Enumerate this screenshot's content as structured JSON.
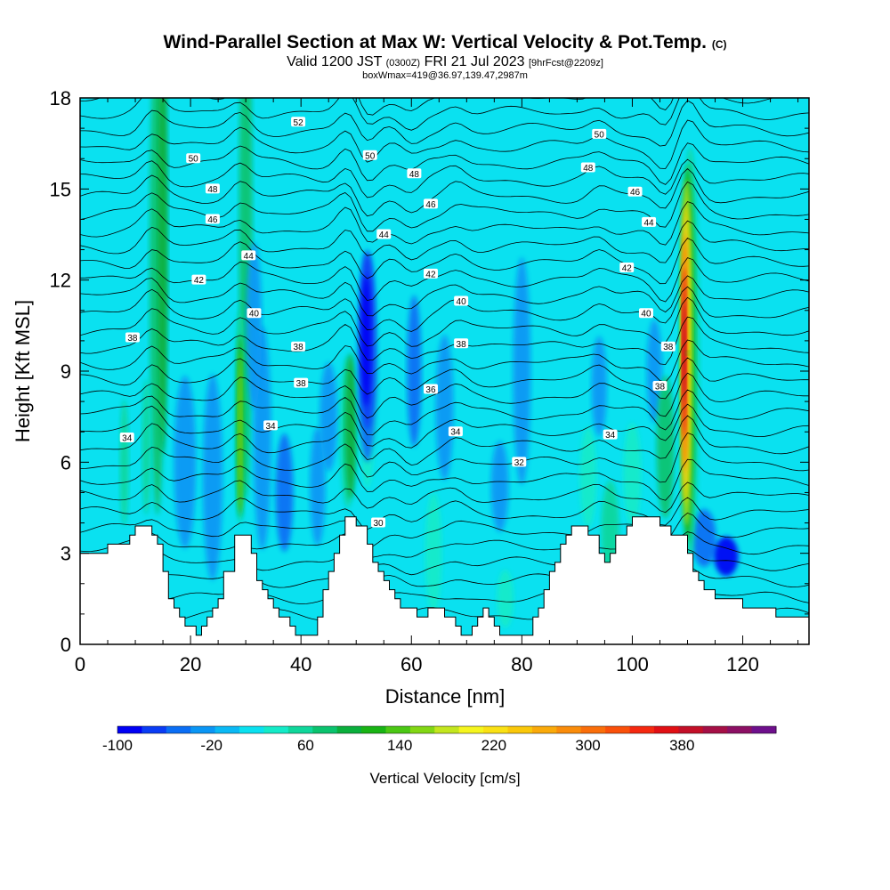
{
  "header": {
    "title": "Wind-Parallel Section at Max W: Vertical Velocity & Pot.Temp.",
    "title_mark": "(C)",
    "valid_prefix": "Valid 1200 JST",
    "valid_utc": "(0300Z)",
    "valid_date": "FRI 21 Jul 2023",
    "forecast": "[9hrFcst@2209z]",
    "box_info": "boxWmax=419@36.97,139.47,2987m"
  },
  "chart_data": {
    "type": "heatmap",
    "xlabel": "Distance [nm]",
    "ylabel": "Height [Kft MSL]",
    "xlim": [
      0,
      132
    ],
    "ylim": [
      0,
      18
    ],
    "x_ticks": [
      0,
      20,
      40,
      60,
      80,
      100,
      120
    ],
    "y_ticks": [
      0,
      3,
      6,
      9,
      12,
      15,
      18
    ],
    "background_w": 5,
    "colorbar": {
      "label": "Vertical Velocity [cm/s]",
      "tick_labels": [
        "-100",
        "-20",
        "60",
        "140",
        "220",
        "300",
        "380"
      ],
      "tick_values": [
        -100,
        -20,
        60,
        140,
        220,
        300,
        380
      ],
      "range": [
        -100,
        460
      ],
      "colors": [
        "#0000f5",
        "#0a3cf5",
        "#0a6ef5",
        "#0a96f5",
        "#0ab9f5",
        "#0ae1f0",
        "#14ebc8",
        "#0fd79b",
        "#0ac36e",
        "#0aaf3c",
        "#19b414",
        "#4bc814",
        "#82d714",
        "#c3e61e",
        "#f5f51e",
        "#fae114",
        "#fac80a",
        "#faaa0a",
        "#fa8c0a",
        "#fa6e0a",
        "#fa500a",
        "#f5280f",
        "#e10f14",
        "#c30f28",
        "#a50f46",
        "#8c0f64",
        "#6e0f8c"
      ]
    },
    "terrain": [
      [
        0,
        3.0
      ],
      [
        5,
        3.0
      ],
      [
        5,
        3.3
      ],
      [
        9,
        3.3
      ],
      [
        9,
        3.6
      ],
      [
        10,
        3.6
      ],
      [
        10,
        3.9
      ],
      [
        13,
        3.9
      ],
      [
        13,
        3.6
      ],
      [
        14,
        3.6
      ],
      [
        14,
        3.3
      ],
      [
        15,
        3.3
      ],
      [
        15,
        2.4
      ],
      [
        16,
        2.4
      ],
      [
        16,
        1.5
      ],
      [
        17,
        1.5
      ],
      [
        17,
        1.2
      ],
      [
        18,
        1.2
      ],
      [
        18,
        0.9
      ],
      [
        19,
        0.9
      ],
      [
        19,
        0.6
      ],
      [
        21,
        0.6
      ],
      [
        21,
        0.3
      ],
      [
        22,
        0.3
      ],
      [
        22,
        0.6
      ],
      [
        23,
        0.6
      ],
      [
        23,
        0.9
      ],
      [
        24,
        0.9
      ],
      [
        24,
        1.2
      ],
      [
        25,
        1.2
      ],
      [
        25,
        1.5
      ],
      [
        26,
        1.5
      ],
      [
        26,
        2.4
      ],
      [
        28,
        2.4
      ],
      [
        28,
        3.6
      ],
      [
        31,
        3.6
      ],
      [
        31,
        3.0
      ],
      [
        32,
        3.0
      ],
      [
        32,
        2.1
      ],
      [
        33,
        2.1
      ],
      [
        33,
        1.8
      ],
      [
        34,
        1.8
      ],
      [
        34,
        1.5
      ],
      [
        35,
        1.5
      ],
      [
        35,
        1.2
      ],
      [
        36,
        1.2
      ],
      [
        36,
        0.9
      ],
      [
        38,
        0.9
      ],
      [
        38,
        0.6
      ],
      [
        39,
        0.6
      ],
      [
        39,
        0.3
      ],
      [
        43,
        0.3
      ],
      [
        43,
        0.9
      ],
      [
        44,
        0.9
      ],
      [
        44,
        1.8
      ],
      [
        45,
        1.8
      ],
      [
        45,
        2.4
      ],
      [
        46,
        2.4
      ],
      [
        46,
        3.0
      ],
      [
        47,
        3.0
      ],
      [
        47,
        3.6
      ],
      [
        48,
        3.6
      ],
      [
        48,
        4.2
      ],
      [
        50,
        4.2
      ],
      [
        50,
        3.9
      ],
      [
        52,
        3.9
      ],
      [
        52,
        3.3
      ],
      [
        53,
        3.3
      ],
      [
        53,
        2.7
      ],
      [
        54,
        2.7
      ],
      [
        54,
        2.4
      ],
      [
        55,
        2.4
      ],
      [
        55,
        2.1
      ],
      [
        56,
        2.1
      ],
      [
        56,
        1.8
      ],
      [
        57,
        1.8
      ],
      [
        57,
        1.5
      ],
      [
        58,
        1.5
      ],
      [
        58,
        1.2
      ],
      [
        61,
        1.2
      ],
      [
        61,
        0.9
      ],
      [
        63,
        0.9
      ],
      [
        63,
        1.2
      ],
      [
        66,
        1.2
      ],
      [
        66,
        0.9
      ],
      [
        68,
        0.9
      ],
      [
        68,
        0.6
      ],
      [
        69,
        0.6
      ],
      [
        69,
        0.3
      ],
      [
        71,
        0.3
      ],
      [
        71,
        0.6
      ],
      [
        72,
        0.6
      ],
      [
        72,
        0.9
      ],
      [
        73,
        0.9
      ],
      [
        73,
        1.2
      ],
      [
        74,
        1.2
      ],
      [
        74,
        0.9
      ],
      [
        75,
        0.9
      ],
      [
        75,
        0.6
      ],
      [
        76,
        0.6
      ],
      [
        76,
        0.3
      ],
      [
        82,
        0.3
      ],
      [
        82,
        0.9
      ],
      [
        83,
        0.9
      ],
      [
        83,
        1.2
      ],
      [
        84,
        1.2
      ],
      [
        84,
        1.8
      ],
      [
        85,
        1.8
      ],
      [
        85,
        2.4
      ],
      [
        86,
        2.4
      ],
      [
        86,
        2.7
      ],
      [
        87,
        2.7
      ],
      [
        87,
        3.3
      ],
      [
        88,
        3.3
      ],
      [
        88,
        3.6
      ],
      [
        89,
        3.6
      ],
      [
        89,
        3.9
      ],
      [
        92,
        3.9
      ],
      [
        92,
        3.6
      ],
      [
        94,
        3.6
      ],
      [
        94,
        3.0
      ],
      [
        95,
        3.0
      ],
      [
        95,
        2.7
      ],
      [
        96,
        2.7
      ],
      [
        96,
        3.0
      ],
      [
        97,
        3.0
      ],
      [
        97,
        3.6
      ],
      [
        99,
        3.6
      ],
      [
        99,
        3.9
      ],
      [
        100,
        3.9
      ],
      [
        100,
        4.2
      ],
      [
        105,
        4.2
      ],
      [
        105,
        3.9
      ],
      [
        107,
        3.9
      ],
      [
        107,
        3.6
      ],
      [
        110,
        3.6
      ],
      [
        110,
        3.0
      ],
      [
        111,
        3.0
      ],
      [
        111,
        2.4
      ],
      [
        112,
        2.4
      ],
      [
        112,
        2.1
      ],
      [
        113,
        2.1
      ],
      [
        113,
        1.8
      ],
      [
        115,
        1.8
      ],
      [
        115,
        1.5
      ],
      [
        120,
        1.5
      ],
      [
        120,
        1.2
      ],
      [
        126,
        1.2
      ],
      [
        126,
        0.9
      ],
      [
        132,
        0.9
      ]
    ],
    "theta_labels": [
      {
        "text": "52",
        "x": 39.5,
        "y": 17.2
      },
      {
        "text": "50",
        "x": 20.5,
        "y": 16.0
      },
      {
        "text": "50",
        "x": 94,
        "y": 16.8
      },
      {
        "text": "50",
        "x": 52.5,
        "y": 16.1
      },
      {
        "text": "48",
        "x": 24,
        "y": 15.0
      },
      {
        "text": "48",
        "x": 60.5,
        "y": 15.5
      },
      {
        "text": "48",
        "x": 92,
        "y": 15.7
      },
      {
        "text": "46",
        "x": 24,
        "y": 14.0
      },
      {
        "text": "46",
        "x": 63.5,
        "y": 14.5
      },
      {
        "text": "46",
        "x": 100.5,
        "y": 14.9
      },
      {
        "text": "44",
        "x": 55,
        "y": 13.5
      },
      {
        "text": "44",
        "x": 30.5,
        "y": 12.8
      },
      {
        "text": "44",
        "x": 103,
        "y": 13.9
      },
      {
        "text": "42",
        "x": 21.5,
        "y": 12.0
      },
      {
        "text": "42",
        "x": 63.5,
        "y": 12.2
      },
      {
        "text": "42",
        "x": 99,
        "y": 12.4
      },
      {
        "text": "40",
        "x": 69,
        "y": 11.3
      },
      {
        "text": "40",
        "x": 31.5,
        "y": 10.9
      },
      {
        "text": "40",
        "x": 102.5,
        "y": 10.9
      },
      {
        "text": "38",
        "x": 9.5,
        "y": 10.1
      },
      {
        "text": "38",
        "x": 39.5,
        "y": 9.8
      },
      {
        "text": "38",
        "x": 69,
        "y": 9.9
      },
      {
        "text": "38",
        "x": 106.5,
        "y": 9.8
      },
      {
        "text": "38",
        "x": 40,
        "y": 8.6
      },
      {
        "text": "36",
        "x": 63.5,
        "y": 8.4
      },
      {
        "text": "38",
        "x": 105,
        "y": 8.5
      },
      {
        "text": "34",
        "x": 8.5,
        "y": 6.8
      },
      {
        "text": "34",
        "x": 34.5,
        "y": 7.2
      },
      {
        "text": "34",
        "x": 68,
        "y": 7.0
      },
      {
        "text": "34",
        "x": 96,
        "y": 6.9
      },
      {
        "text": "32",
        "x": 79.5,
        "y": 6.0
      },
      {
        "text": "30",
        "x": 54,
        "y": 4.0
      }
    ]
  }
}
